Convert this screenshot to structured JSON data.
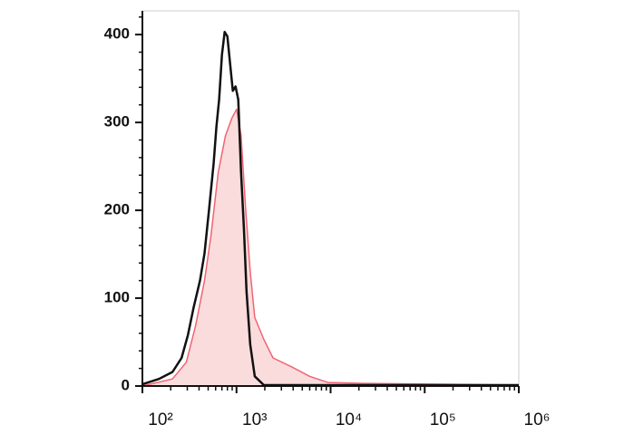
{
  "chart_data": {
    "type": "line",
    "log_x": true,
    "xlim": [
      100,
      1000000
    ],
    "xticks": [
      {
        "value": 100,
        "label": "10²"
      },
      {
        "value": 1000,
        "label": "10³"
      },
      {
        "value": 10000,
        "label": "10⁴"
      },
      {
        "value": 100000,
        "label": "10⁵"
      },
      {
        "value": 1000000,
        "label": "10⁶"
      }
    ],
    "ylim": [
      0,
      427
    ],
    "yticks": [
      0,
      100,
      200,
      300,
      400
    ],
    "series": [
      {
        "color": "#f06474",
        "fill": "#fbdcdc",
        "x": [
          100,
          209,
          293,
          366,
          457,
          535,
          640,
          764,
          894,
          1000,
          1119,
          1251,
          1399,
          1564,
          1954,
          2445,
          3826,
          5986,
          9357,
          22850,
          1000000
        ],
        "values": [
          0,
          8,
          27,
          68,
          120,
          171,
          243,
          285,
          305,
          315,
          285,
          202,
          130,
          78,
          53,
          32,
          22,
          11,
          4,
          3,
          1
        ]
      },
      {
        "color": "#111111",
        "x": [
          100,
          150,
          209,
          261,
          305,
          350,
          409,
          457,
          512,
          572,
          611,
          654,
          700,
          748,
          800,
          855,
          914,
          977,
          1045,
          1119,
          1197,
          1279,
          1399,
          1564,
          1954,
          1000000
        ],
        "values": [
          2,
          8,
          16,
          32,
          58,
          89,
          120,
          151,
          202,
          254,
          295,
          326,
          377,
          403,
          398,
          367,
          336,
          341,
          326,
          243,
          180,
          108,
          47,
          11,
          1,
          1
        ]
      }
    ]
  }
}
